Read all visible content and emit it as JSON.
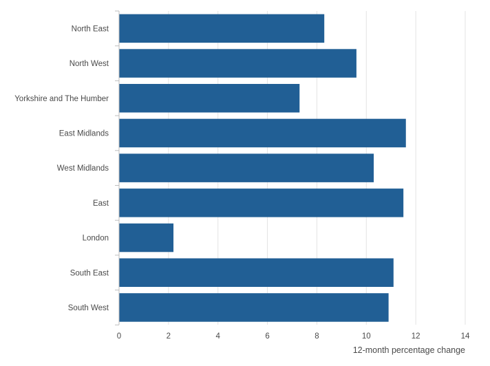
{
  "chart_data": {
    "type": "bar",
    "orientation": "horizontal",
    "categories": [
      "North East",
      "North West",
      "Yorkshire and The Humber",
      "East Midlands",
      "West Midlands",
      "East",
      "London",
      "South East",
      "South West"
    ],
    "values": [
      8.3,
      9.6,
      7.3,
      11.6,
      10.3,
      11.5,
      2.2,
      11.1,
      10.9
    ],
    "xlabel": "12-month percentage change",
    "xlim": [
      0,
      14
    ],
    "xticks": [
      "0",
      "2",
      "4",
      "6",
      "8",
      "10",
      "12",
      "14"
    ],
    "grid": "vertical",
    "bar_color": "#215f95",
    "grid_color": "#e3e3e3",
    "axis_color": "#bdbdbd"
  }
}
